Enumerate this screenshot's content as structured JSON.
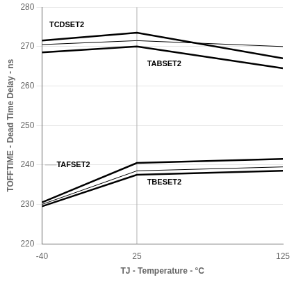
{
  "chart_data": {
    "type": "line",
    "x_label": "TJ - Temperature - °C",
    "y_label": "TOFFTIME - Dead Time Delay - ns",
    "x": [
      -40,
      25,
      125
    ],
    "xlim": [
      -40,
      125
    ],
    "xticks": [
      -40,
      25,
      125
    ],
    "ylim": [
      220,
      280
    ],
    "yticks": [
      220,
      230,
      240,
      250,
      260,
      270,
      280
    ],
    "grid": "y",
    "color": "#000000",
    "series": [
      {
        "values": [
          271.5,
          273.5,
          267.0
        ]
      },
      {
        "values": [
          270.5,
          271.5,
          270.0
        ],
        "line_style": "thin"
      },
      {
        "values": [
          268.5,
          270.0,
          264.5
        ]
      },
      {
        "values": [
          230.5,
          240.5,
          241.5
        ]
      },
      {
        "values": [
          230.0,
          238.5,
          239.5
        ],
        "line_style": "thin"
      },
      {
        "values": [
          229.5,
          237.5,
          238.5
        ]
      }
    ],
    "annotations": [
      {
        "text": "TCDSET2",
        "x": -35,
        "y": 275.5
      },
      {
        "text": "TABSET2",
        "x": 32,
        "y": 265.5
      },
      {
        "text": "TAFSET2",
        "x": -30,
        "y": 240.0
      },
      {
        "text": "TBESET2",
        "x": 32,
        "y": 235.5
      }
    ],
    "vlines": [
      {
        "x": 25,
        "color": "#b0b0b0"
      }
    ],
    "leader_lines": [
      {
        "x": [
          -38,
          -30
        ],
        "y": 240.0,
        "color": "#b0b0b0"
      }
    ]
  }
}
